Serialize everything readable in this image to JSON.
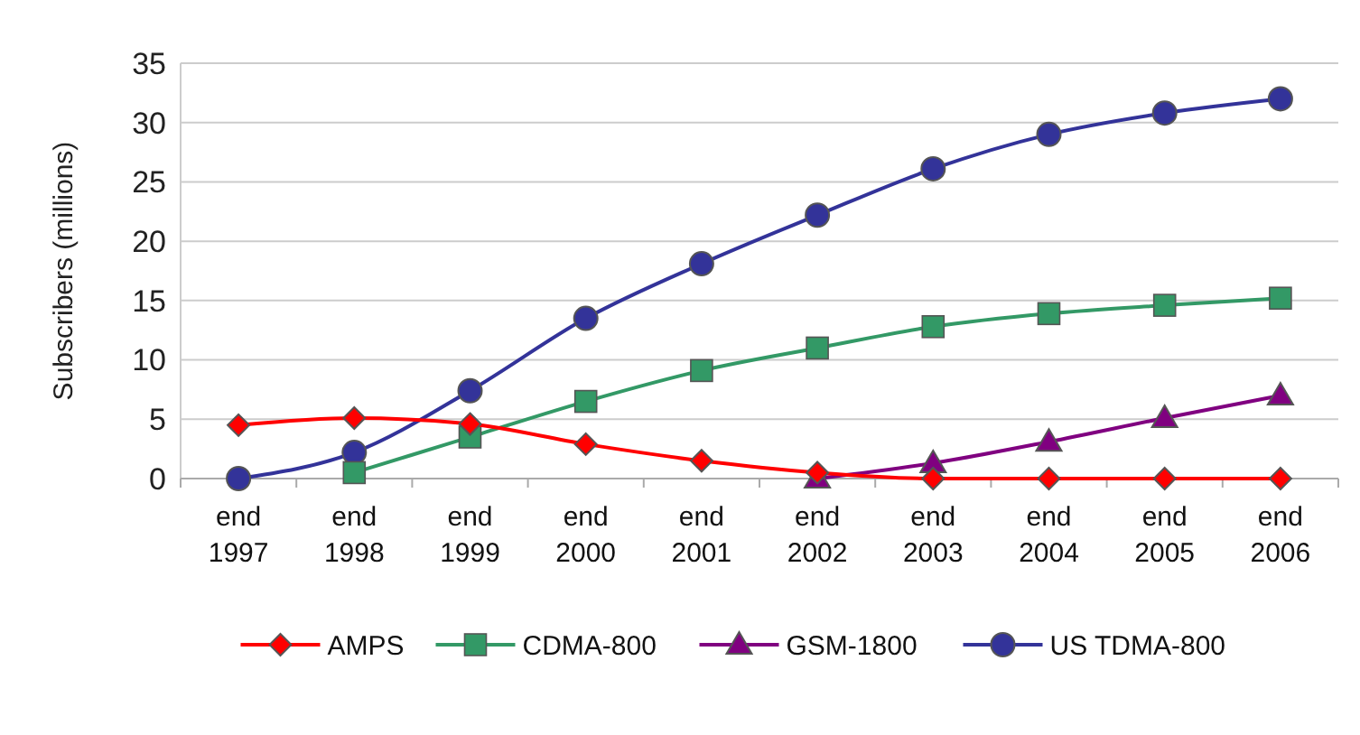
{
  "chart_data": {
    "type": "line",
    "ylabel": "Subscribers (millions)",
    "categories": [
      "end\n1997",
      "end\n1998",
      "end\n1999",
      "end\n2000",
      "end\n2001",
      "end\n2002",
      "end\n2003",
      "end\n2004",
      "end\n2005",
      "end\n2006"
    ],
    "series": [
      {
        "name": "AMPS",
        "color": "#ff0000",
        "marker": "diamond",
        "values": [
          4.5,
          5.1,
          4.6,
          2.9,
          1.5,
          0.5,
          0,
          0,
          0,
          0
        ]
      },
      {
        "name": "CDMA-800",
        "color": "#339966",
        "marker": "square",
        "values": [
          null,
          0.5,
          3.5,
          6.5,
          9.1,
          11,
          12.8,
          13.9,
          14.6,
          15.2
        ]
      },
      {
        "name": "GSM-1800",
        "color": "#800080",
        "marker": "triangle",
        "values": [
          null,
          null,
          null,
          null,
          null,
          0,
          1.3,
          3.1,
          5.1,
          7
        ]
      },
      {
        "name": "US TDMA-800",
        "color": "#333399",
        "marker": "circle",
        "values": [
          0,
          2.2,
          7.4,
          13.5,
          18.1,
          22.2,
          26.1,
          29,
          30.8,
          32
        ]
      }
    ],
    "ylim": [
      0,
      35
    ],
    "yticks": [
      0,
      5,
      10,
      15,
      20,
      25,
      30,
      35
    ],
    "grid": "y",
    "legend": "bottom",
    "line_style": "solid"
  }
}
